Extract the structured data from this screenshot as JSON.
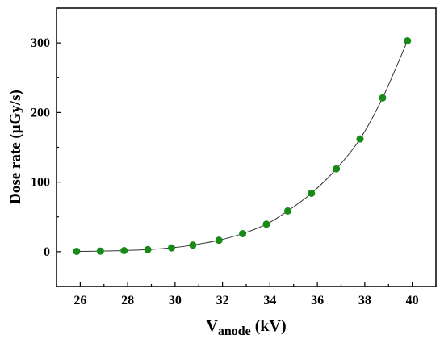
{
  "chart_data": {
    "type": "line",
    "xlabel_main": "V",
    "xlabel_sub": "anode",
    "xlabel_unit": " (kV)",
    "ylabel": "Dose rate (μGy/s)",
    "xlim": [
      25,
      41
    ],
    "ylim": [
      -50,
      350
    ],
    "x_ticks": [
      26,
      28,
      30,
      32,
      34,
      36,
      38,
      40
    ],
    "y_ticks": [
      0,
      100,
      200,
      300
    ],
    "grid": false,
    "legend": "none",
    "colors": {
      "marker": "#188a18",
      "line": "#333333",
      "axis": "#000000"
    },
    "series": [
      {
        "x": [
          25.85,
          26.85,
          27.85,
          28.85,
          29.85,
          30.75,
          31.85,
          32.85,
          33.85,
          34.75,
          35.75,
          36.8,
          37.8,
          38.75,
          39.8
        ],
        "y": [
          0.5,
          0.8,
          1.6,
          3,
          5.5,
          9.5,
          16.5,
          26,
          39.5,
          58.5,
          84,
          119,
          162,
          221,
          303
        ]
      }
    ]
  }
}
